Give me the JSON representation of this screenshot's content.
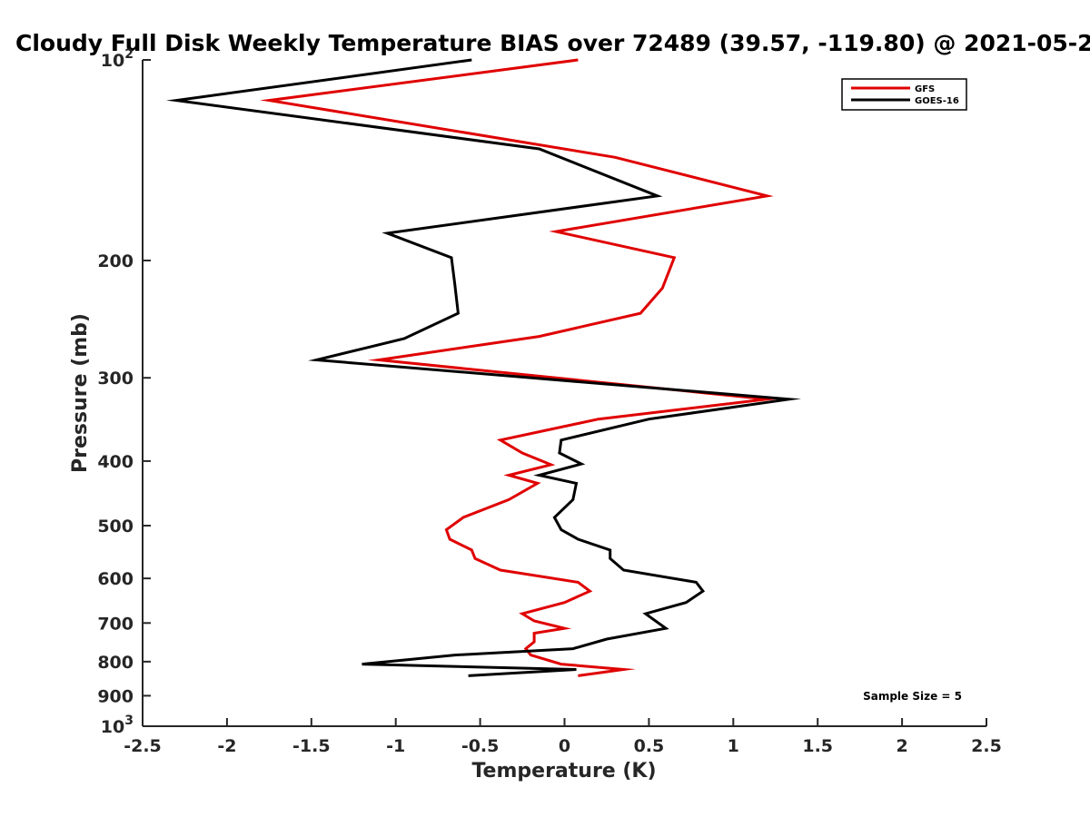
{
  "chart_data": {
    "type": "line",
    "title": "Cloudy Full Disk Weekly Temperature BIAS over 72489 (39.57, -119.80) @ 2021-05-2",
    "xlabel": "Temperature (K)",
    "ylabel": "Pressure (mb)",
    "xlim": [
      -2.5,
      2.5
    ],
    "ylim": [
      100,
      1000
    ],
    "y_scale": "log",
    "y_reversed": true,
    "grid": false,
    "legend_position": "top-right",
    "x_ticks": [
      -2.5,
      -2,
      -1.5,
      -1,
      -0.5,
      0,
      0.5,
      1,
      1.5,
      2,
      2.5
    ],
    "x_tick_labels": [
      "-2.5",
      "-2",
      "-1.5",
      "-1",
      "-0.5",
      "0",
      "0.5",
      "1",
      "1.5",
      "2",
      "2.5"
    ],
    "y_ticks": [
      100,
      200,
      300,
      400,
      500,
      600,
      700,
      800,
      900,
      1000
    ],
    "y_tick_labels": [
      {
        "base": "10",
        "exp": "2"
      },
      {
        "base": "200",
        "exp": ""
      },
      {
        "base": "300",
        "exp": ""
      },
      {
        "base": "400",
        "exp": ""
      },
      {
        "base": "500",
        "exp": ""
      },
      {
        "base": "600",
        "exp": ""
      },
      {
        "base": "700",
        "exp": ""
      },
      {
        "base": "800",
        "exp": ""
      },
      {
        "base": "900",
        "exp": ""
      },
      {
        "base": "10",
        "exp": "3"
      }
    ],
    "annotation": "Sample Size = 5",
    "series": [
      {
        "name": "GFS",
        "color": "#e00000",
        "points": [
          [
            0.08,
            100
          ],
          [
            -1.75,
            115
          ],
          [
            0.3,
            140
          ],
          [
            1.2,
            160
          ],
          [
            -0.05,
            181
          ],
          [
            0.65,
            198
          ],
          [
            0.58,
            220
          ],
          [
            0.45,
            240
          ],
          [
            -0.15,
            260
          ],
          [
            -1.1,
            282
          ],
          [
            1.2,
            323
          ],
          [
            0.2,
            346
          ],
          [
            -0.38,
            372
          ],
          [
            -0.25,
            389
          ],
          [
            -0.08,
            405
          ],
          [
            -0.33,
            420
          ],
          [
            -0.16,
            432
          ],
          [
            -0.33,
            457
          ],
          [
            -0.6,
            486
          ],
          [
            -0.7,
            507
          ],
          [
            -0.68,
            524
          ],
          [
            -0.55,
            544
          ],
          [
            -0.53,
            560
          ],
          [
            -0.38,
            583
          ],
          [
            0.08,
            608
          ],
          [
            0.15,
            627
          ],
          [
            0,
            652
          ],
          [
            -0.25,
            678
          ],
          [
            -0.18,
            695
          ],
          [
            0,
            713
          ],
          [
            -0.18,
            725
          ],
          [
            -0.18,
            747
          ],
          [
            -0.23,
            765
          ],
          [
            -0.2,
            782
          ],
          [
            -0.02,
            807
          ],
          [
            0.35,
            822
          ],
          [
            0.08,
            840
          ]
        ]
      },
      {
        "name": "GOES-16",
        "color": "#000000",
        "points": [
          [
            -0.55,
            100
          ],
          [
            -2.3,
            115
          ],
          [
            -0.15,
            136
          ],
          [
            0.55,
            160
          ],
          [
            -1.05,
            182
          ],
          [
            -0.67,
            198
          ],
          [
            -0.65,
            217
          ],
          [
            -0.63,
            240
          ],
          [
            -0.95,
            262
          ],
          [
            -1.47,
            282
          ],
          [
            1.33,
            323
          ],
          [
            0.5,
            346
          ],
          [
            -0.02,
            372
          ],
          [
            -0.03,
            389
          ],
          [
            0.1,
            404
          ],
          [
            -0.15,
            420
          ],
          [
            0.07,
            432
          ],
          [
            0.05,
            457
          ],
          [
            -0.06,
            486
          ],
          [
            -0.02,
            507
          ],
          [
            0.08,
            524
          ],
          [
            0.27,
            544
          ],
          [
            0.27,
            560
          ],
          [
            0.35,
            583
          ],
          [
            0.78,
            608
          ],
          [
            0.82,
            627
          ],
          [
            0.72,
            652
          ],
          [
            0.48,
            678
          ],
          [
            0.6,
            713
          ],
          [
            0.25,
            740
          ],
          [
            0.05,
            765
          ],
          [
            -0.65,
            782
          ],
          [
            -1.2,
            807
          ],
          [
            0.07,
            822
          ],
          [
            -0.57,
            840
          ]
        ]
      }
    ]
  }
}
